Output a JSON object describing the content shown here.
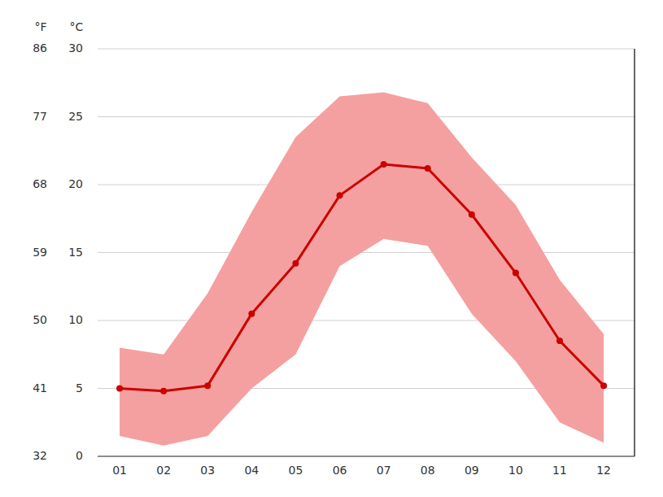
{
  "chart_data": {
    "type": "line",
    "x": [
      1,
      2,
      3,
      4,
      5,
      6,
      7,
      8,
      9,
      10,
      11,
      12
    ],
    "xlim": [
      0.5,
      12.7
    ],
    "xticks": [
      {
        "value": 1,
        "label": "01"
      },
      {
        "value": 2,
        "label": "02"
      },
      {
        "value": 3,
        "label": "03"
      },
      {
        "value": 4,
        "label": "04"
      },
      {
        "value": 5,
        "label": "05"
      },
      {
        "value": 6,
        "label": "06"
      },
      {
        "value": 7,
        "label": "07"
      },
      {
        "value": 8,
        "label": "08"
      },
      {
        "value": 9,
        "label": "09"
      },
      {
        "value": 10,
        "label": "10"
      },
      {
        "value": 11,
        "label": "11"
      },
      {
        "value": 12,
        "label": "12"
      }
    ],
    "series": [
      {
        "type": "band",
        "color": "#f4a0a0",
        "low": [
          1.5,
          0.8,
          1.5,
          5.0,
          7.5,
          14.0,
          16.0,
          15.5,
          10.5,
          7.0,
          2.5,
          1.0
        ],
        "high": [
          8.0,
          7.5,
          12.0,
          18.0,
          23.5,
          26.5,
          26.8,
          26.0,
          22.0,
          18.5,
          13.0,
          9.0
        ]
      },
      {
        "type": "line",
        "color": "#cc0000",
        "marker": "circle",
        "values": [
          5.0,
          4.8,
          5.2,
          10.5,
          14.2,
          19.2,
          21.5,
          21.2,
          17.8,
          13.5,
          8.5,
          5.2
        ]
      }
    ],
    "ylabel": "°C",
    "ylim": [
      0,
      30
    ],
    "yticks": [
      0,
      5,
      10,
      15,
      20,
      25,
      30
    ],
    "y2label": "°F",
    "y2lim": [
      32,
      86
    ],
    "y2ticks": [
      32,
      41,
      50,
      59,
      68,
      77,
      86
    ],
    "grid": true
  }
}
